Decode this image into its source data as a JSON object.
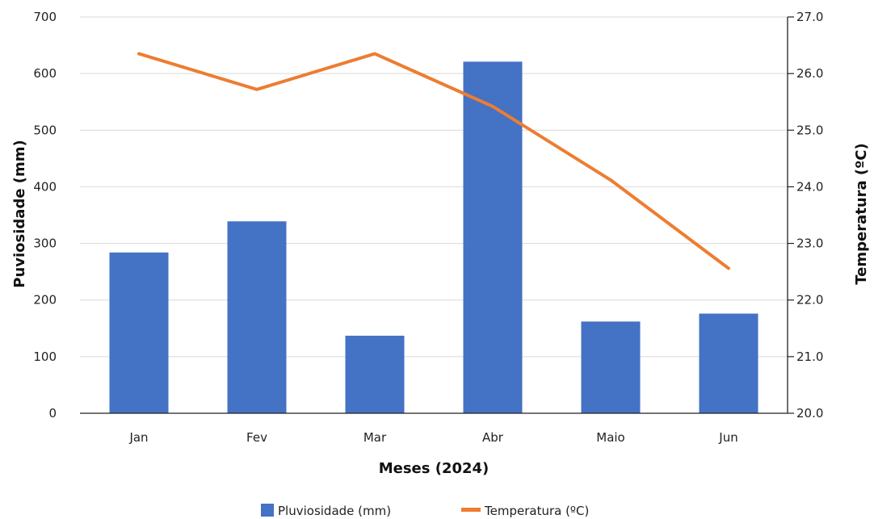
{
  "chart_data": {
    "type": "bar",
    "categories": [
      "Jan",
      "Fev",
      "Mar",
      "Abr",
      "Maio",
      "Jun"
    ],
    "series": [
      {
        "name": "Pluviosidade (mm)",
        "type": "bar",
        "axis": "left",
        "values": [
          284,
          339,
          137,
          621,
          162,
          176
        ]
      },
      {
        "name": "Temperatura (ºC)",
        "type": "line",
        "axis": "right",
        "values": [
          26.35,
          25.72,
          26.35,
          25.42,
          24.12,
          22.56
        ]
      }
    ],
    "xlabel": "Meses (2024)",
    "ylabel": "Puviosidade (mm)",
    "y2label": "Temperatura (ºC)",
    "ylim": [
      0,
      700
    ],
    "y2lim": [
      20.0,
      27.0
    ],
    "yticks": [
      "0",
      "100",
      "200",
      "300",
      "400",
      "500",
      "600",
      "700"
    ],
    "y2ticks": [
      "20.0",
      "21.0",
      "22.0",
      "23.0",
      "24.0",
      "25.0",
      "26.0",
      "27.0"
    ],
    "grid": true,
    "legend": "bottom",
    "colors": {
      "bars": "#4472C4",
      "line": "#ED7D31"
    }
  }
}
